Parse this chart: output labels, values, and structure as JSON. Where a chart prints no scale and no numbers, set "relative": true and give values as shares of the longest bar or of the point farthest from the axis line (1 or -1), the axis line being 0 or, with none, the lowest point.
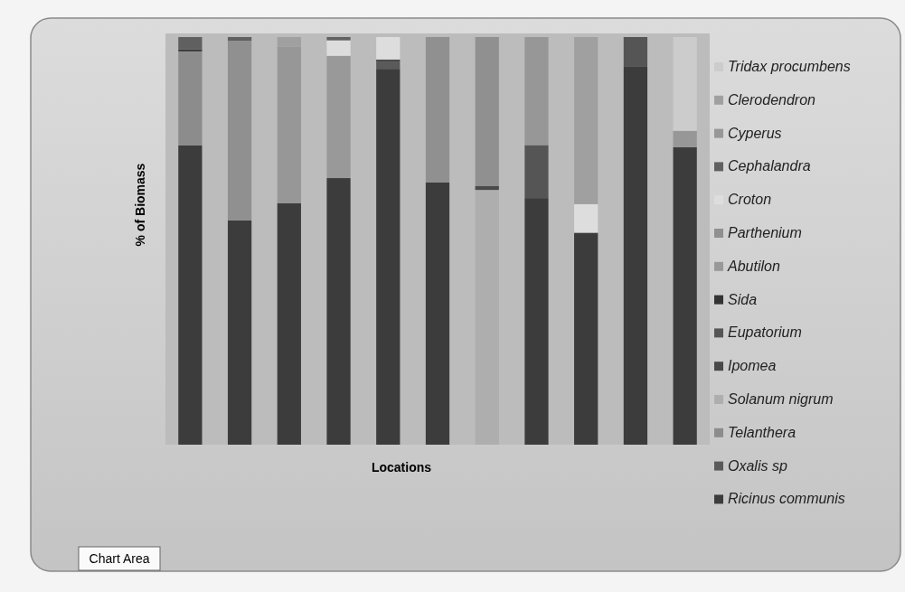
{
  "chart_data": {
    "type": "bar",
    "stacked": true,
    "relative": true,
    "legend": "right",
    "xlabel": "Locations",
    "ylabel": "% of Biomass",
    "annotations": [
      "Chart Area"
    ],
    "categories": [
      null,
      null,
      null,
      null,
      null,
      null,
      null,
      null,
      null,
      null,
      null
    ],
    "series": [
      {
        "name": "Ricinus communis",
        "color": "#3c3c3c",
        "values": [
          0.734,
          0.55,
          0.592,
          0.654,
          0.922,
          0.643,
          null,
          0.605,
          0.52,
          0.927,
          0.73
        ]
      },
      {
        "name": "Oxalis sp",
        "color": "#5a5a5a",
        "values": [
          null,
          null,
          null,
          null,
          0.018,
          null,
          null,
          null,
          null,
          null,
          null
        ]
      },
      {
        "name": "Telanthera",
        "color": "#8c8c8c",
        "values": [
          0.231,
          null,
          null,
          null,
          null,
          null,
          null,
          null,
          null,
          null,
          null
        ]
      },
      {
        "name": "Solanum nigrum",
        "color": "#aeaeae",
        "values": [
          null,
          null,
          null,
          null,
          null,
          null,
          0.625,
          null,
          null,
          null,
          null
        ]
      },
      {
        "name": "Ipomea",
        "color": "#4a4a4a",
        "values": [
          null,
          null,
          null,
          null,
          0.005,
          null,
          0.01,
          null,
          null,
          null,
          null
        ]
      },
      {
        "name": "Eupatorium",
        "color": "#555555",
        "values": [
          null,
          null,
          null,
          null,
          null,
          null,
          null,
          0.13,
          null,
          0.073,
          null
        ]
      },
      {
        "name": "Sida",
        "color": "#333333",
        "values": [
          0.005,
          null,
          null,
          null,
          null,
          null,
          null,
          null,
          null,
          null,
          null
        ]
      },
      {
        "name": "Abutilon",
        "color": "#999999",
        "values": [
          null,
          null,
          null,
          0.3,
          null,
          null,
          null,
          null,
          null,
          null,
          null
        ]
      },
      {
        "name": "Parthenium",
        "color": "#909090",
        "values": [
          null,
          0.441,
          null,
          null,
          null,
          0.357,
          0.365,
          null,
          null,
          null,
          null
        ]
      },
      {
        "name": "Croton",
        "color": "#dddddd",
        "values": [
          null,
          null,
          null,
          0.038,
          0.055,
          null,
          null,
          null,
          0.07,
          null,
          null
        ]
      },
      {
        "name": "Cephalandra",
        "color": "#606060",
        "values": [
          0.03,
          0.009,
          null,
          0.008,
          null,
          null,
          null,
          null,
          null,
          null,
          null
        ]
      },
      {
        "name": "Cyperus",
        "color": "#979797",
        "values": [
          null,
          null,
          0.384,
          null,
          null,
          null,
          null,
          0.265,
          null,
          null,
          0.04
        ]
      },
      {
        "name": "Clerodendron",
        "color": "#a0a0a0",
        "values": [
          null,
          null,
          0.024,
          null,
          null,
          null,
          null,
          null,
          0.41,
          null,
          null
        ]
      },
      {
        "name": "Tridax procumbens",
        "color": "#cccccc",
        "values": [
          null,
          null,
          null,
          null,
          null,
          null,
          null,
          null,
          null,
          null,
          0.23
        ]
      }
    ]
  }
}
